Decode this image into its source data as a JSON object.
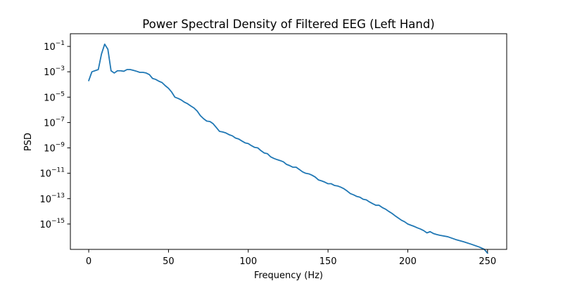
{
  "chart_data": {
    "type": "line",
    "title": "Power Spectral Density of Filtered EEG (Left Hand)",
    "xlabel": "Frequency (Hz)",
    "ylabel": "PSD",
    "xscale": "linear",
    "yscale": "log",
    "xlim": [
      -11.5,
      262
    ],
    "ylim": [
      1e-17,
      1
    ],
    "xticks": [
      0,
      50,
      100,
      150,
      200,
      250
    ],
    "xtick_labels": [
      "0",
      "50",
      "100",
      "150",
      "200",
      "250"
    ],
    "yticks": [
      {
        "value": 1e-15,
        "base": "10",
        "exp": "−15"
      },
      {
        "value": 1e-13,
        "base": "10",
        "exp": "−13"
      },
      {
        "value": 1e-11,
        "base": "10",
        "exp": "−11"
      },
      {
        "value": 1e-09,
        "base": "10",
        "exp": "−9"
      },
      {
        "value": 1e-07,
        "base": "10",
        "exp": "−7"
      },
      {
        "value": 1e-05,
        "base": "10",
        "exp": "−5"
      },
      {
        "value": 0.001,
        "base": "10",
        "exp": "−3"
      },
      {
        "value": 0.1,
        "base": "10",
        "exp": "−1"
      }
    ],
    "grid": false,
    "color": "#1f77b4",
    "series": [
      {
        "x": [
          0,
          2,
          6,
          8,
          10,
          12,
          14,
          16,
          18,
          20,
          22,
          24,
          26,
          28,
          30,
          32,
          34,
          36,
          38,
          40,
          42,
          44,
          46,
          48,
          50,
          52,
          54,
          56,
          58,
          60,
          62,
          64,
          66,
          68,
          70,
          72,
          74,
          76,
          78,
          80,
          82,
          84,
          86,
          88,
          90,
          92,
          94,
          96,
          98,
          100,
          102,
          104,
          106,
          108,
          110,
          112,
          114,
          116,
          118,
          120,
          122,
          124,
          126,
          128,
          130,
          132,
          134,
          136,
          138,
          140,
          142,
          144,
          146,
          148,
          150,
          152,
          154,
          156,
          158,
          160,
          162,
          164,
          166,
          168,
          170,
          172,
          174,
          176,
          178,
          180,
          182,
          184,
          186,
          188,
          190,
          192,
          194,
          196,
          198,
          200,
          202,
          204,
          206,
          208,
          210,
          212,
          214,
          216,
          218,
          220,
          225,
          230,
          235,
          240,
          245,
          248,
          250
        ],
        "y": [
          0.0002,
          0.001,
          0.0015,
          0.025,
          0.15,
          0.06,
          0.0012,
          0.0008,
          0.0012,
          0.0012,
          0.0011,
          0.0015,
          0.0015,
          0.0013,
          0.0011,
          0.0009,
          0.0009,
          0.0008,
          0.0006,
          0.0003,
          0.00025,
          0.00018,
          0.00014,
          8e-05,
          5e-05,
          2.5e-05,
          1e-05,
          8e-06,
          6e-06,
          4e-06,
          3e-06,
          2e-06,
          1.4e-06,
          8e-07,
          3.5e-07,
          2e-07,
          1.3e-07,
          1.2e-07,
          8e-08,
          4e-08,
          2e-08,
          1.8e-08,
          1.5e-08,
          1.1e-08,
          9e-09,
          6e-09,
          5e-09,
          3.5e-09,
          2.5e-09,
          2.2e-09,
          1.5e-09,
          1.1e-09,
          1e-09,
          6e-10,
          4e-10,
          3.5e-10,
          2e-10,
          1.5e-10,
          1.2e-10,
          1e-10,
          8e-11,
          5e-11,
          4e-11,
          3e-11,
          3e-11,
          2e-11,
          1.3e-11,
          1e-11,
          9e-12,
          7e-12,
          5e-12,
          3e-12,
          2.5e-12,
          2e-12,
          1.5e-12,
          1.5e-12,
          1.1e-12,
          1e-12,
          8e-13,
          6e-13,
          4e-13,
          2.5e-13,
          2e-13,
          1.5e-13,
          1.3e-13,
          9e-14,
          8e-14,
          5.5e-14,
          4e-14,
          3e-14,
          3e-14,
          2e-14,
          1.5e-14,
          1e-14,
          7e-15,
          4.5e-15,
          3e-15,
          2e-15,
          1.5e-15,
          1e-15,
          8e-16,
          6.5e-16,
          5e-16,
          4e-16,
          3e-16,
          2e-16,
          2.5e-16,
          1.8e-16,
          1.5e-16,
          1.3e-16,
          1e-16,
          6e-17,
          4e-17,
          2.5e-17,
          1.5e-17,
          1e-17,
          5e-18
        ]
      }
    ]
  }
}
